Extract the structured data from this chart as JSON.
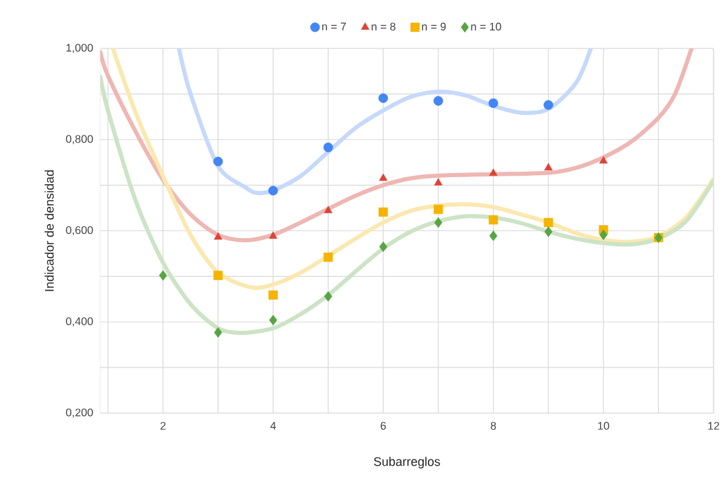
{
  "chart_data": {
    "type": "scatter",
    "xlabel": "Subarreglos",
    "ylabel": "Indicador de densidad",
    "xlim": [
      0.86,
      12
    ],
    "ylim": [
      0.2,
      1.0
    ],
    "xticks": [
      {
        "value": 1,
        "label": null
      },
      2,
      {
        "value": 3,
        "label": null
      },
      4,
      {
        "value": 5,
        "label": null
      },
      6,
      {
        "value": 7,
        "label": null
      },
      8,
      {
        "value": 9,
        "label": null
      },
      10,
      {
        "value": 11,
        "label": null
      },
      12
    ],
    "yticks": [
      {
        "value": 0.2,
        "label": "0,200"
      },
      {
        "value": 0.3,
        "label": null
      },
      {
        "value": 0.4,
        "label": "0,400"
      },
      {
        "value": 0.5,
        "label": null
      },
      {
        "value": 0.6,
        "label": "0,600"
      },
      {
        "value": 0.7,
        "label": null
      },
      {
        "value": 0.8,
        "label": "0,800"
      },
      {
        "value": 0.9,
        "label": null
      },
      {
        "value": 1.0,
        "label": "1,000"
      }
    ],
    "grid": true,
    "legend": "top",
    "series": [
      {
        "type": "line",
        "color": "#c6d9fb",
        "marker": "none",
        "line_style": "solid",
        "x": [
          2.29,
          2.5,
          3,
          3.5,
          3.7,
          4,
          4.5,
          5,
          5.5,
          6,
          6.5,
          7,
          7.5,
          8,
          8.5,
          9,
          9.5,
          9.77
        ],
        "values": [
          1.0,
          0.9,
          0.742,
          0.695,
          0.683,
          0.688,
          0.72,
          0.773,
          0.826,
          0.864,
          0.894,
          0.905,
          0.897,
          0.874,
          0.859,
          0.867,
          0.924,
          1.0
        ]
      },
      {
        "type": "line",
        "color": "#eeb7b3",
        "marker": "none",
        "line_style": "solid",
        "x": [
          0.86,
          1,
          1.5,
          2,
          2.5,
          3,
          3.5,
          4,
          4.5,
          5,
          5.5,
          6,
          6.5,
          7,
          8,
          9,
          9.5,
          10,
          10.5,
          11,
          11.3,
          11.6
        ],
        "values": [
          0.992,
          0.94,
          0.818,
          0.712,
          0.636,
          0.591,
          0.579,
          0.591,
          0.618,
          0.648,
          0.677,
          0.7,
          0.715,
          0.721,
          0.724,
          0.727,
          0.738,
          0.761,
          0.795,
          0.848,
          0.9,
          1.0
        ]
      },
      {
        "type": "line",
        "color": "#fbe8b0",
        "marker": "none",
        "line_style": "solid",
        "x": [
          1.09,
          1.5,
          2,
          2.5,
          3,
          3.6,
          4,
          4.5,
          5,
          5.5,
          6,
          6.5,
          7,
          7.5,
          8,
          8.5,
          9,
          9.5,
          10,
          10.5,
          11,
          11.5,
          12
        ],
        "values": [
          1.0,
          0.86,
          0.72,
          0.591,
          0.508,
          0.476,
          0.482,
          0.508,
          0.545,
          0.583,
          0.618,
          0.644,
          0.655,
          0.658,
          0.652,
          0.636,
          0.618,
          0.595,
          0.58,
          0.576,
          0.588,
          0.629,
          0.714
        ]
      },
      {
        "type": "line",
        "color": "#cde3c6",
        "marker": "none",
        "line_style": "solid",
        "x": [
          0.86,
          1,
          1.5,
          2,
          2.5,
          3,
          3.4,
          4,
          4.5,
          5,
          5.5,
          6,
          6.5,
          7,
          7.5,
          8,
          8.5,
          9,
          9.5,
          10,
          10.5,
          11,
          11.5,
          12
        ],
        "values": [
          0.938,
          0.864,
          0.667,
          0.53,
          0.439,
          0.386,
          0.376,
          0.386,
          0.417,
          0.459,
          0.511,
          0.561,
          0.598,
          0.621,
          0.632,
          0.629,
          0.617,
          0.598,
          0.583,
          0.573,
          0.57,
          0.583,
          0.621,
          0.71
        ]
      },
      {
        "name": "n = 7",
        "color": "#4285f4",
        "marker": "circle",
        "x": [
          3,
          4,
          5,
          6,
          7,
          8,
          9
        ],
        "values": [
          0.752,
          0.688,
          0.783,
          0.891,
          0.885,
          0.88,
          0.876
        ]
      },
      {
        "name": "n = 8",
        "color": "#db4437",
        "marker": "triangle",
        "x": [
          3,
          4,
          5,
          6,
          7,
          8,
          9,
          10
        ],
        "values": [
          0.586,
          0.588,
          0.644,
          0.715,
          0.705,
          0.726,
          0.738,
          0.753
        ]
      },
      {
        "name": "n = 9",
        "color": "#f4b400",
        "marker": "square",
        "x": [
          3,
          4,
          5,
          6,
          7,
          8,
          9,
          10,
          11
        ],
        "values": [
          0.502,
          0.459,
          0.542,
          0.641,
          0.647,
          0.624,
          0.618,
          0.602,
          0.585
        ]
      },
      {
        "name": "n = 10",
        "color": "#57a443",
        "marker": "diamond",
        "x": [
          2,
          3,
          4,
          5,
          6,
          7,
          8,
          9,
          10,
          11
        ],
        "values": [
          0.502,
          0.377,
          0.404,
          0.456,
          0.565,
          0.618,
          0.589,
          0.598,
          0.591,
          0.585
        ]
      }
    ]
  }
}
